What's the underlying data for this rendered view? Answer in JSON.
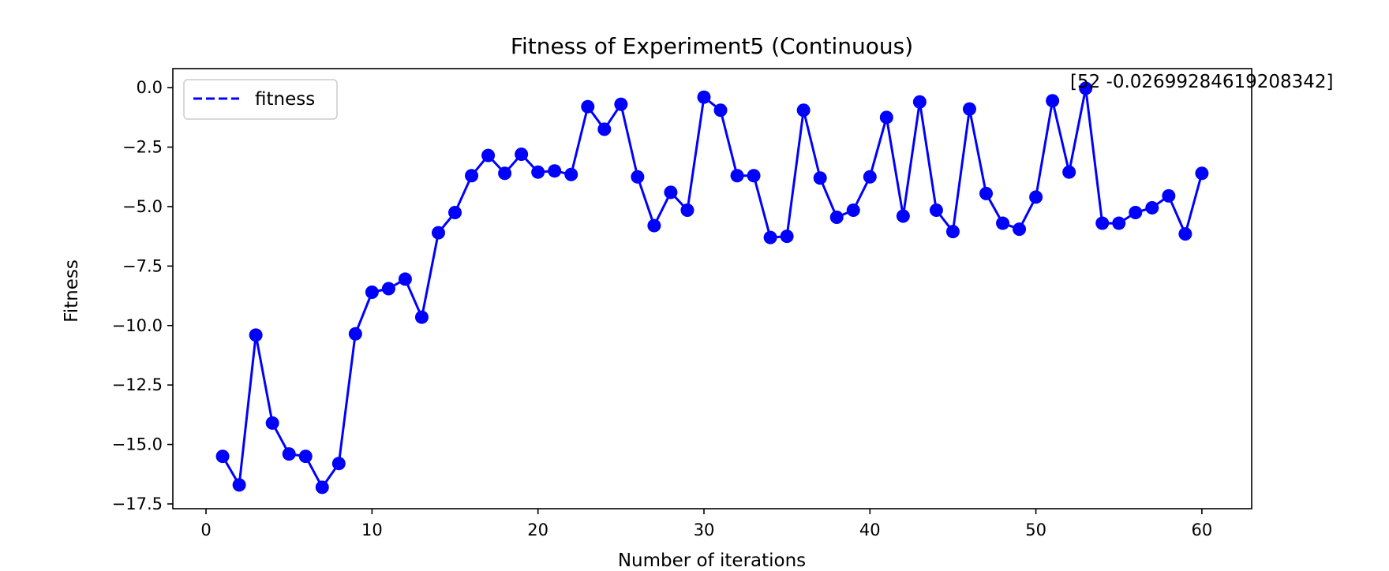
{
  "chart_data": {
    "type": "line",
    "title": "Fitness of Experiment5 (Continuous)",
    "xlabel": "Number of iterations",
    "ylabel": "Fitness",
    "xlim": [
      -2,
      63
    ],
    "ylim": [
      -17.7,
      0.8
    ],
    "xticks": [
      0,
      10,
      20,
      30,
      40,
      50,
      60
    ],
    "yticks": [
      0.0,
      -2.5,
      -5.0,
      -7.5,
      -10.0,
      -12.5,
      -15.0,
      -17.5
    ],
    "ytick_labels": [
      "0.0",
      "−2.5",
      "−5.0",
      "−7.5",
      "−10.0",
      "−12.5",
      "−15.0",
      "−17.5"
    ],
    "grid": false,
    "legend": {
      "location": "upper-left",
      "entries": [
        {
          "label": "fitness",
          "style": "dashed"
        }
      ]
    },
    "annotation": {
      "text": "[52 -0.02699284619208342]",
      "x": 53,
      "y": -0.027
    },
    "series": [
      {
        "name": "fitness",
        "color": "#0000ff",
        "x": [
          1,
          2,
          3,
          4,
          5,
          6,
          7,
          8,
          9,
          10,
          11,
          12,
          13,
          14,
          15,
          16,
          17,
          18,
          19,
          20,
          21,
          22,
          23,
          24,
          25,
          26,
          27,
          28,
          29,
          30,
          31,
          32,
          33,
          34,
          35,
          36,
          37,
          38,
          39,
          40,
          41,
          42,
          43,
          44,
          45,
          46,
          47,
          48,
          49,
          50,
          51,
          52,
          53,
          54,
          55,
          56,
          57,
          58,
          59,
          60
        ],
        "y": [
          -15.5,
          -16.7,
          -10.4,
          -14.1,
          -15.4,
          -15.5,
          -16.8,
          -15.8,
          -10.35,
          -8.6,
          -8.45,
          -8.05,
          -9.65,
          -6.1,
          -5.25,
          -3.7,
          -2.85,
          -3.6,
          -2.8,
          -3.55,
          -3.5,
          -3.65,
          -0.8,
          -1.75,
          -0.7,
          -3.75,
          -5.8,
          -4.4,
          -5.15,
          -0.4,
          -0.95,
          -3.7,
          -3.7,
          -6.3,
          -6.25,
          -0.95,
          -3.8,
          -5.45,
          -5.15,
          -3.75,
          -1.25,
          -5.4,
          -0.6,
          -5.15,
          -6.05,
          -0.9,
          -4.45,
          -5.7,
          -5.95,
          -4.6,
          -0.55,
          -3.55,
          -0.03,
          -5.7,
          -5.7,
          -5.25,
          -5.05,
          -4.55,
          -6.15,
          -3.6
        ]
      }
    ]
  }
}
